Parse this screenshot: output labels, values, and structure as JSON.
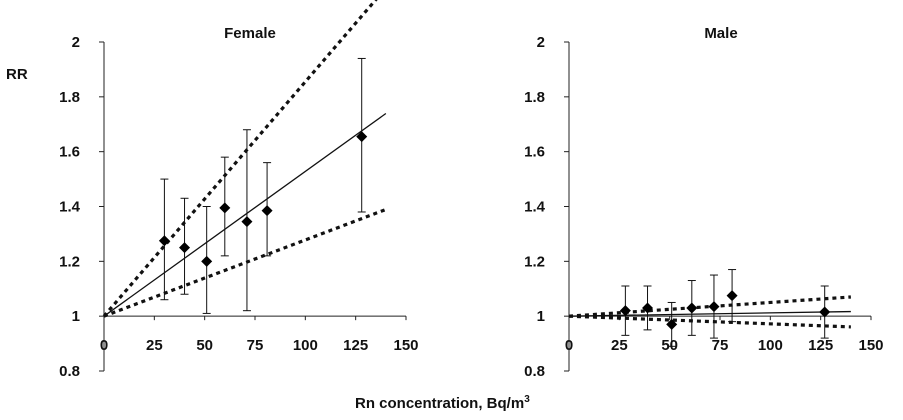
{
  "figure": {
    "ylabel": "RR",
    "xlabel": "Rn concentration, Bq/m",
    "xlabel_sup": "3"
  },
  "chart_data": [
    {
      "type": "scatter",
      "title": "Female",
      "ylim": [
        0.8,
        2
      ],
      "yticks": [
        0.8,
        1,
        1.2,
        1.4,
        1.6,
        1.8,
        2
      ],
      "ytick_labels": [
        "0.8",
        "1",
        "1.2",
        "1.4",
        "1.6",
        "1.8",
        "2"
      ],
      "xlim": [
        0,
        150
      ],
      "xticks": [
        0,
        25,
        50,
        75,
        100,
        125,
        150
      ],
      "xtick_labels": [
        "0",
        "25",
        "50",
        "75",
        "100",
        "125",
        "150"
      ],
      "x_axis_crosses_y": 1,
      "points": [
        {
          "x": 30,
          "y": 1.275,
          "lo": 1.06,
          "hi": 1.5
        },
        {
          "x": 40,
          "y": 1.25,
          "lo": 1.08,
          "hi": 1.43
        },
        {
          "x": 51,
          "y": 1.2,
          "lo": 1.01,
          "hi": 1.4
        },
        {
          "x": 60,
          "y": 1.395,
          "lo": 1.22,
          "hi": 1.58
        },
        {
          "x": 71,
          "y": 1.345,
          "lo": 1.02,
          "hi": 1.68
        },
        {
          "x": 81,
          "y": 1.385,
          "lo": 1.22,
          "hi": 1.56
        },
        {
          "x": 128,
          "y": 1.655,
          "lo": 1.38,
          "hi": 1.94
        }
      ],
      "fit": {
        "slope": 0.00528,
        "intercept": 1,
        "x_range": [
          0,
          140
        ]
      },
      "ci_upper": {
        "slope": 0.00855,
        "intercept": 1,
        "x_range": [
          0,
          140
        ]
      },
      "ci_lower": {
        "slope": 0.00278,
        "intercept": 1,
        "x_range": [
          0,
          140
        ]
      }
    },
    {
      "type": "scatter",
      "title": "Male",
      "ylim": [
        0.8,
        2
      ],
      "yticks": [
        0.8,
        1,
        1.2,
        1.4,
        1.6,
        1.8,
        2
      ],
      "ytick_labels": [
        "0.8",
        "1",
        "1.2",
        "1.4",
        "1.6",
        "1.8",
        "2"
      ],
      "xlim": [
        0,
        150
      ],
      "xticks": [
        0,
        25,
        50,
        75,
        100,
        125,
        150
      ],
      "xtick_labels": [
        "0",
        "25",
        "50",
        "75",
        "100",
        "125",
        "150"
      ],
      "x_axis_crosses_y": 1,
      "points": [
        {
          "x": 28,
          "y": 1.02,
          "lo": 0.93,
          "hi": 1.11
        },
        {
          "x": 39,
          "y": 1.03,
          "lo": 0.95,
          "hi": 1.11
        },
        {
          "x": 51,
          "y": 0.97,
          "lo": 0.89,
          "hi": 1.05
        },
        {
          "x": 61,
          "y": 1.03,
          "lo": 0.93,
          "hi": 1.13
        },
        {
          "x": 72,
          "y": 1.035,
          "lo": 0.92,
          "hi": 1.15
        },
        {
          "x": 81,
          "y": 1.075,
          "lo": 0.98,
          "hi": 1.17
        },
        {
          "x": 127,
          "y": 1.015,
          "lo": 0.92,
          "hi": 1.11
        }
      ],
      "fit": {
        "slope": 0.00012,
        "intercept": 1,
        "x_range": [
          0,
          140
        ]
      },
      "ci_upper": {
        "slope": 0.0005,
        "intercept": 1,
        "x_range": [
          0,
          140
        ]
      },
      "ci_lower": {
        "slope": -0.00028,
        "intercept": 1,
        "x_range": [
          0,
          140
        ]
      }
    }
  ]
}
